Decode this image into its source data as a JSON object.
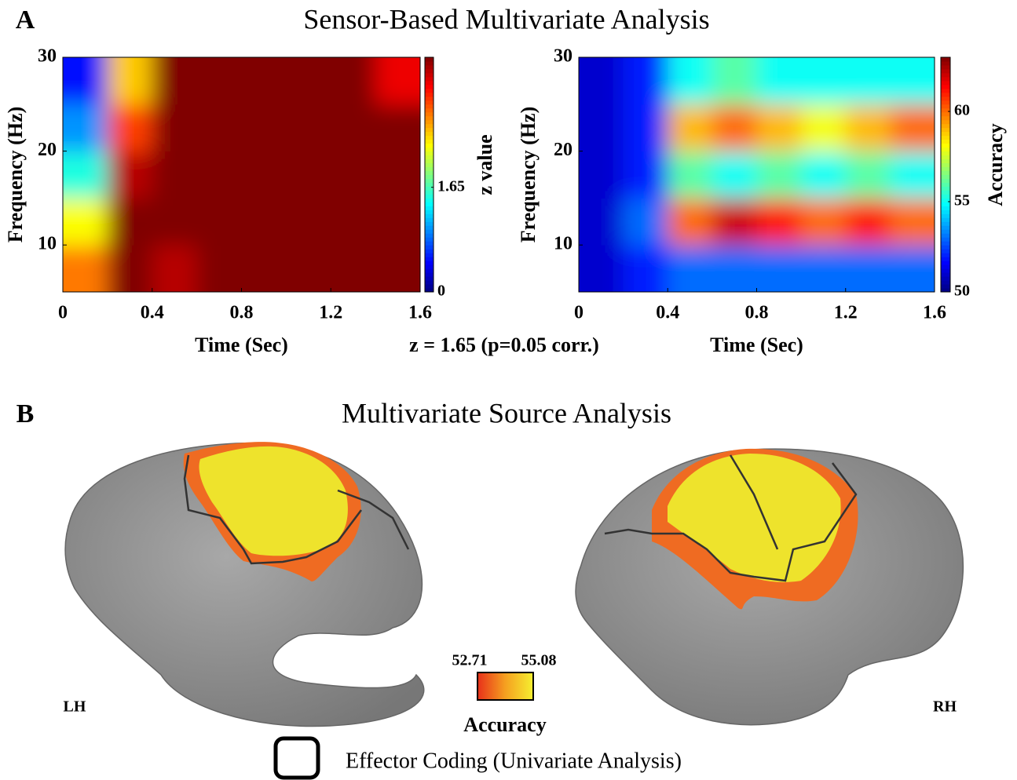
{
  "panel_a": {
    "label": "A",
    "title": "Sensor-Based Multivariate Analysis",
    "annotation": "z = 1.65 (p=0.05 corr.)"
  },
  "chart_data": [
    {
      "type": "heatmap",
      "x_label": "Time (Sec)",
      "y_label": "Frequency (Hz)",
      "colorbar_label": "z value",
      "xlim": [
        0,
        1.6
      ],
      "ylim": [
        5,
        30
      ],
      "xticks": [
        0,
        0.4,
        0.8,
        1.2,
        1.6
      ],
      "yticks": [
        10,
        20,
        30
      ],
      "clim": [
        0,
        3.7
      ],
      "cticks": [
        0,
        1.65
      ],
      "x": [
        0.1,
        0.3,
        0.5,
        0.7,
        0.9,
        1.1,
        1.3,
        1.5
      ],
      "y": [
        7.5,
        12.5,
        17.5,
        22.5,
        27.5
      ],
      "values": [
        [
          2.8,
          3.7,
          3.5,
          3.7,
          3.7,
          3.7,
          3.7,
          3.7
        ],
        [
          2.3,
          3.7,
          3.7,
          3.7,
          3.7,
          3.7,
          3.7,
          3.7
        ],
        [
          1.5,
          3.5,
          3.7,
          3.7,
          3.7,
          3.7,
          3.7,
          3.7
        ],
        [
          1.0,
          3.0,
          3.7,
          3.7,
          3.7,
          3.7,
          3.7,
          3.7
        ],
        [
          0.5,
          2.5,
          3.7,
          3.7,
          3.7,
          3.7,
          3.7,
          3.3
        ]
      ]
    },
    {
      "type": "heatmap",
      "x_label": "Time (Sec)",
      "y_label": "Frequency (Hz)",
      "colorbar_label": "Accuracy",
      "xlim": [
        0,
        1.6
      ],
      "ylim": [
        5,
        30
      ],
      "xticks": [
        0,
        0.4,
        0.8,
        1.2,
        1.6
      ],
      "yticks": [
        10,
        20,
        30
      ],
      "clim": [
        50,
        63
      ],
      "cticks": [
        50,
        55,
        60
      ],
      "x": [
        0.1,
        0.3,
        0.5,
        0.7,
        0.9,
        1.1,
        1.3,
        1.5
      ],
      "y": [
        7.5,
        12.5,
        17.5,
        22.5,
        27.5
      ],
      "values": [
        [
          51,
          52,
          53,
          53,
          53,
          53,
          53,
          53
        ],
        [
          51,
          53,
          60,
          62,
          61,
          60,
          61,
          60
        ],
        [
          51,
          52,
          56,
          55,
          56,
          55,
          56,
          55
        ],
        [
          51,
          52,
          59,
          60,
          59,
          58,
          59,
          60
        ],
        [
          51,
          52,
          55,
          56,
          55,
          55,
          55,
          55
        ]
      ]
    }
  ],
  "panel_b": {
    "label": "B",
    "title": "Multivariate Source Analysis",
    "colorbar": {
      "ticks": [
        52.71,
        55.08
      ],
      "label": "Accuracy"
    },
    "hemispheres": [
      "LH",
      "RH"
    ],
    "legend": "Effector Coding (Univariate Analysis)"
  }
}
